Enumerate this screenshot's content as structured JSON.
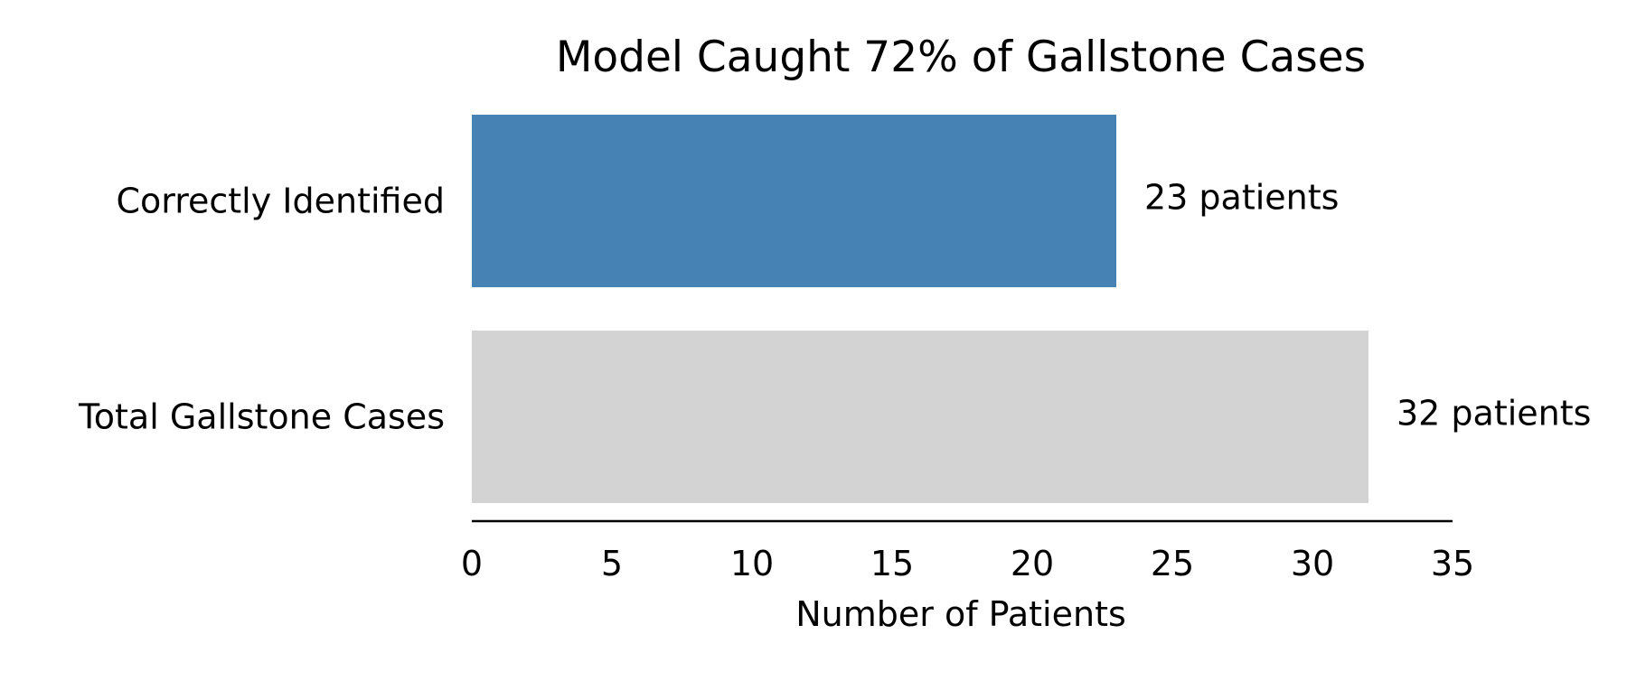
{
  "chart_data": {
    "type": "bar",
    "orientation": "horizontal",
    "title": "Model Caught 72% of Gallstone Cases",
    "xlabel": "Number of Patients",
    "ylabel": "",
    "xlim": [
      0,
      35
    ],
    "xticks": [
      0,
      5,
      10,
      15,
      20,
      25,
      30,
      35
    ],
    "grid": false,
    "legend": "none",
    "categories": [
      "Correctly Identified",
      "Total Gallstone Cases"
    ],
    "values": [
      23,
      32
    ],
    "data_labels": [
      "23 patients",
      "32 patients"
    ],
    "colors": [
      "#4682b4",
      "#d3d3d3"
    ]
  }
}
